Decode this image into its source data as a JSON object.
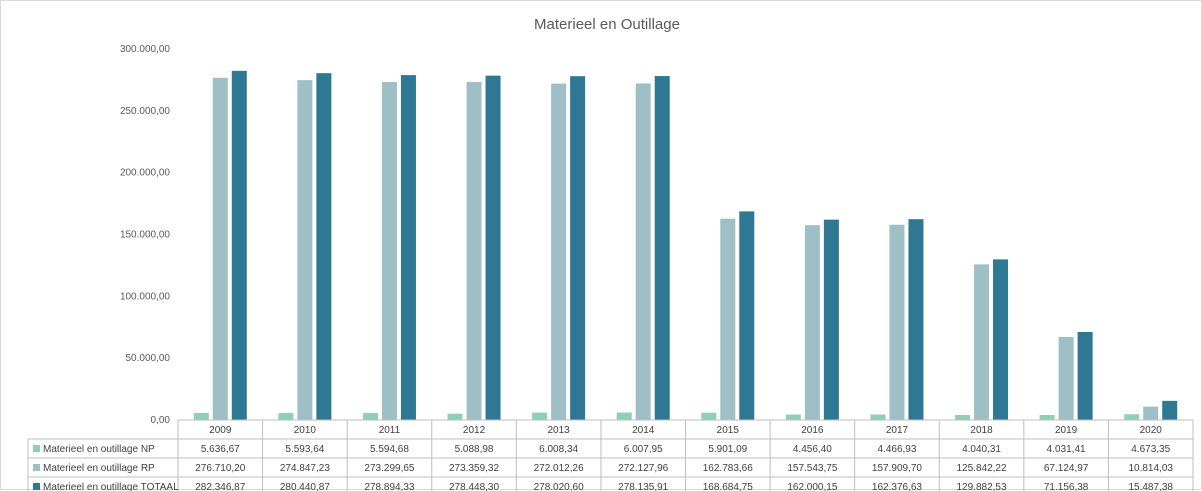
{
  "chart_data": {
    "type": "bar",
    "title": "Materieel en Outillage",
    "categories": [
      "2009",
      "2010",
      "2011",
      "2012",
      "2013",
      "2014",
      "2015",
      "2016",
      "2017",
      "2018",
      "2019",
      "2020"
    ],
    "ylim": [
      0,
      300000
    ],
    "yticks": [
      0,
      50000,
      100000,
      150000,
      200000,
      250000,
      300000
    ],
    "ytick_labels": [
      "0,00",
      "50.000,00",
      "100.000,00",
      "150.000,00",
      "200.000,00",
      "250.000,00",
      "300.000,00"
    ],
    "grid": false,
    "legend": "bottom-table",
    "series": [
      {
        "name": "Materieel en outillage NP",
        "color": "#8fcfb4",
        "values": [
          5636.67,
          5593.64,
          5594.68,
          5088.98,
          6008.34,
          6007.95,
          5901.09,
          4456.4,
          4466.93,
          4040.31,
          4031.41,
          4673.35
        ],
        "labels": [
          "5.636,67",
          "5.593,64",
          "5.594,68",
          "5.088,98",
          "6.008,34",
          "6.007,95",
          "5.901,09",
          "4.456,40",
          "4.466,93",
          "4.040,31",
          "4.031,41",
          "4.673,35"
        ]
      },
      {
        "name": "Materieel en outillage RP",
        "color": "#9dbfc5",
        "values": [
          276710.2,
          274847.23,
          273299.65,
          273359.32,
          272012.26,
          272127.96,
          162783.66,
          157543.75,
          157909.7,
          125842.22,
          67124.97,
          10814.03
        ],
        "labels": [
          "276.710,20",
          "274.847,23",
          "273.299,65",
          "273.359,32",
          "272.012,26",
          "272.127,96",
          "162.783,66",
          "157.543,75",
          "157.909,70",
          "125.842,22",
          "67.124,97",
          "10.814,03"
        ]
      },
      {
        "name": "Materieel en outillage TOTAAL",
        "color": "#2e7893",
        "values": [
          282346.87,
          280440.87,
          278894.33,
          278448.3,
          278020.6,
          278135.91,
          168684.75,
          162000.15,
          162376.63,
          129882.53,
          71156.38,
          15487.38
        ],
        "labels": [
          "282.346,87",
          "280.440,87",
          "278.894,33",
          "278.448,30",
          "278.020,60",
          "278.135,91",
          "168.684,75",
          "162.000,15",
          "162.376,63",
          "129.882,53",
          "71.156,38",
          "15.487,38"
        ]
      }
    ]
  }
}
